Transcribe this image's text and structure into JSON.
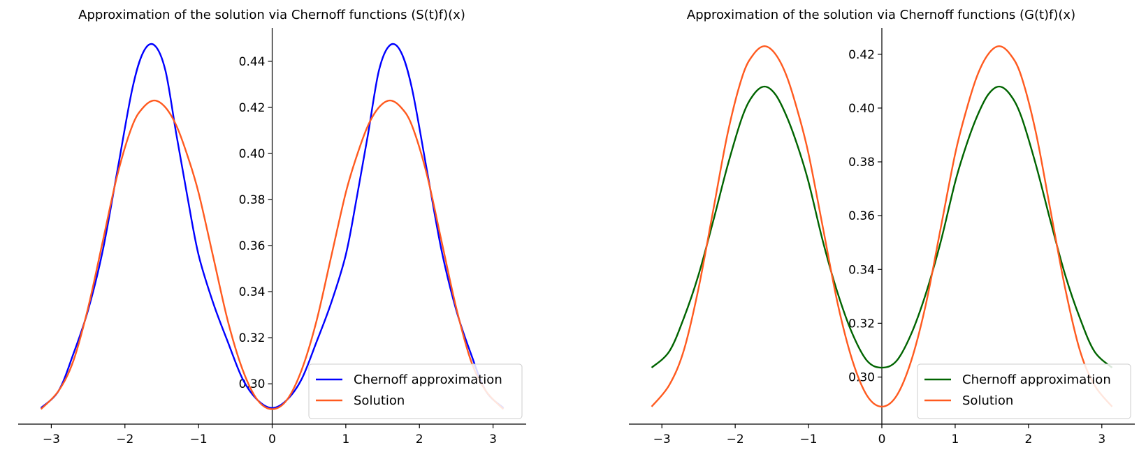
{
  "chart_data": [
    {
      "type": "line",
      "title": "Approximation of the solution via Chernoff functions (S(t)f)(x)",
      "xlabel": "",
      "ylabel": "",
      "xlim": [
        -3.45,
        3.45
      ],
      "ylim": [
        0.2825,
        0.4545
      ],
      "xticks": [
        -3,
        -2,
        -1,
        0,
        1,
        2,
        3
      ],
      "yticks": [
        0.3,
        0.32,
        0.34,
        0.36,
        0.38,
        0.4,
        0.42,
        0.44
      ],
      "xtick_labels": [
        "−3",
        "−2",
        "−1",
        "0",
        "1",
        "2",
        "3"
      ],
      "ytick_labels": [
        "0.30",
        "0.32",
        "0.34",
        "0.36",
        "0.38",
        "0.40",
        "0.42",
        "0.44"
      ],
      "grid": false,
      "spines": "centered at zero",
      "legend_position": "lower-right",
      "series": [
        {
          "name": "Chernoff approximation",
          "color": "#0000ff",
          "x": [
            -3.14,
            -2.9,
            -2.7,
            -2.5,
            -2.3,
            -2.1,
            -1.9,
            -1.75,
            -1.6,
            -1.45,
            -1.3,
            -1.15,
            -1.0,
            -0.8,
            -0.6,
            -0.4,
            -0.2,
            0.0,
            0.2,
            0.4,
            0.6,
            0.8,
            1.0,
            1.15,
            1.3,
            1.45,
            1.6,
            1.75,
            1.9,
            2.1,
            2.3,
            2.5,
            2.7,
            2.9,
            3.14
          ],
          "y": [
            0.2895,
            0.297,
            0.313,
            0.332,
            0.358,
            0.393,
            0.428,
            0.444,
            0.447,
            0.436,
            0.408,
            0.381,
            0.356,
            0.335,
            0.318,
            0.302,
            0.293,
            0.2895,
            0.293,
            0.302,
            0.318,
            0.335,
            0.356,
            0.381,
            0.408,
            0.436,
            0.447,
            0.444,
            0.428,
            0.393,
            0.358,
            0.332,
            0.313,
            0.297,
            0.2895
          ]
        },
        {
          "name": "Solution",
          "color": "#ff5a1f",
          "x": [
            -3.14,
            -2.9,
            -2.7,
            -2.5,
            -2.3,
            -2.1,
            -1.9,
            -1.75,
            -1.6,
            -1.45,
            -1.3,
            -1.15,
            -1.0,
            -0.8,
            -0.6,
            -0.4,
            -0.2,
            0.0,
            0.2,
            0.4,
            0.6,
            0.8,
            1.0,
            1.15,
            1.3,
            1.45,
            1.6,
            1.75,
            1.9,
            2.1,
            2.3,
            2.5,
            2.7,
            2.9,
            3.14
          ],
          "y": [
            0.289,
            0.297,
            0.31,
            0.333,
            0.362,
            0.391,
            0.412,
            0.42,
            0.423,
            0.42,
            0.412,
            0.399,
            0.383,
            0.355,
            0.327,
            0.306,
            0.293,
            0.289,
            0.293,
            0.306,
            0.327,
            0.355,
            0.383,
            0.399,
            0.412,
            0.42,
            0.423,
            0.42,
            0.412,
            0.391,
            0.362,
            0.333,
            0.31,
            0.297,
            0.289
          ]
        }
      ]
    },
    {
      "type": "line",
      "title": "Approximation of the solution via Chernoff functions (G(t)f)(x)",
      "xlabel": "",
      "ylabel": "",
      "xlim": [
        -3.45,
        3.45
      ],
      "ylim": [
        0.2825,
        0.4298
      ],
      "xticks": [
        -3,
        -2,
        -1,
        0,
        1,
        2,
        3
      ],
      "yticks": [
        0.3,
        0.32,
        0.34,
        0.36,
        0.38,
        0.4,
        0.42
      ],
      "xtick_labels": [
        "−3",
        "−2",
        "−1",
        "0",
        "1",
        "2",
        "3"
      ],
      "ytick_labels": [
        "0.30",
        "0.32",
        "0.34",
        "0.36",
        "0.38",
        "0.40",
        "0.42"
      ],
      "grid": false,
      "spines": "centered at zero",
      "legend_position": "lower-right",
      "series": [
        {
          "name": "Chernoff approximation",
          "color": "#006400",
          "x": [
            -3.14,
            -2.9,
            -2.7,
            -2.5,
            -2.3,
            -2.1,
            -1.9,
            -1.75,
            -1.6,
            -1.45,
            -1.3,
            -1.15,
            -1.0,
            -0.8,
            -0.6,
            -0.4,
            -0.2,
            0.0,
            0.2,
            0.4,
            0.6,
            0.8,
            1.0,
            1.15,
            1.3,
            1.45,
            1.6,
            1.75,
            1.9,
            2.1,
            2.3,
            2.5,
            2.7,
            2.9,
            3.14
          ],
          "y": [
            0.3035,
            0.3095,
            0.322,
            0.338,
            0.358,
            0.379,
            0.397,
            0.405,
            0.408,
            0.405,
            0.397,
            0.386,
            0.3725,
            0.35,
            0.331,
            0.316,
            0.306,
            0.3035,
            0.306,
            0.316,
            0.331,
            0.35,
            0.3725,
            0.386,
            0.397,
            0.405,
            0.408,
            0.405,
            0.397,
            0.379,
            0.358,
            0.338,
            0.322,
            0.3095,
            0.3035
          ]
        },
        {
          "name": "Solution",
          "color": "#ff5a1f",
          "x": [
            -3.14,
            -2.9,
            -2.7,
            -2.5,
            -2.3,
            -2.1,
            -1.9,
            -1.75,
            -1.6,
            -1.45,
            -1.3,
            -1.15,
            -1.0,
            -0.8,
            -0.6,
            -0.4,
            -0.2,
            0.0,
            0.2,
            0.4,
            0.6,
            0.8,
            1.0,
            1.15,
            1.3,
            1.45,
            1.6,
            1.75,
            1.9,
            2.1,
            2.3,
            2.5,
            2.7,
            2.9,
            3.14
          ],
          "y": [
            0.289,
            0.297,
            0.31,
            0.333,
            0.362,
            0.391,
            0.412,
            0.42,
            0.423,
            0.42,
            0.412,
            0.399,
            0.383,
            0.355,
            0.327,
            0.306,
            0.293,
            0.289,
            0.293,
            0.306,
            0.327,
            0.355,
            0.383,
            0.399,
            0.412,
            0.42,
            0.423,
            0.42,
            0.412,
            0.391,
            0.362,
            0.333,
            0.31,
            0.297,
            0.289
          ]
        }
      ]
    }
  ]
}
